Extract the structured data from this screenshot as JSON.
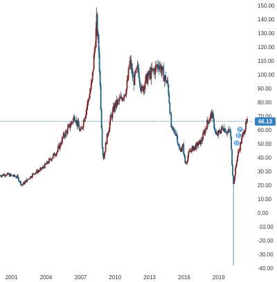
{
  "chart_data": {
    "type": "candlestick",
    "title": "",
    "xlabel": "",
    "ylabel": "",
    "ylim": [
      -42,
      152
    ],
    "xlim": [
      2000.0,
      2021.9
    ],
    "grid": false,
    "x_ticks": [
      {
        "value": 2001,
        "label": "2001"
      },
      {
        "value": 2004,
        "label": "2004"
      },
      {
        "value": 2007,
        "label": "2007"
      },
      {
        "value": 2010,
        "label": "2010"
      },
      {
        "value": 2013,
        "label": "2013"
      },
      {
        "value": 2016,
        "label": "2016"
      },
      {
        "value": 2019,
        "label": "2019"
      }
    ],
    "y_ticks": [
      {
        "value": 150,
        "label": "150.00"
      },
      {
        "value": 140,
        "label": "140.00"
      },
      {
        "value": 130,
        "label": "130.00"
      },
      {
        "value": 120,
        "label": "120.00"
      },
      {
        "value": 110,
        "label": "110.00"
      },
      {
        "value": 100,
        "label": "100.00"
      },
      {
        "value": 90,
        "label": "90.00"
      },
      {
        "value": 80,
        "label": "80.00"
      },
      {
        "value": 70,
        "label": "70.00"
      },
      {
        "value": 60,
        "label": "60.00"
      },
      {
        "value": 50,
        "label": "50.00"
      },
      {
        "value": 40,
        "label": "40.00"
      },
      {
        "value": 30,
        "label": "30.00"
      },
      {
        "value": 20,
        "label": "20.00"
      },
      {
        "value": 10,
        "label": "10.00"
      },
      {
        "value": 0,
        "label": "0.00"
      },
      {
        "value": -10,
        "label": "-10.00"
      },
      {
        "value": -20,
        "label": "-20.00"
      },
      {
        "value": -30,
        "label": "-30.00"
      },
      {
        "value": -40,
        "label": "-40.00"
      }
    ],
    "last_price": {
      "value": 66.13,
      "label": "66.13"
    },
    "markers": [
      {
        "x": 2020.85,
        "y": 60.5,
        "label": "P"
      },
      {
        "x": 2020.72,
        "y": 56.0,
        "label": "E"
      },
      {
        "x": 2020.55,
        "y": 50.5,
        "label": "D"
      }
    ],
    "colors": {
      "up": "#7a1f1f",
      "down": "#1f5f7f",
      "last_price_line": "#1f5f7f",
      "last_price_tag": "#2f80c0",
      "marker": "#3a8fd6",
      "axis_text": "#333333"
    },
    "x": [
      2000.0,
      2000.5,
      2001.0,
      2001.5,
      2001.9,
      2002.5,
      2003.0,
      2003.5,
      2004.0,
      2004.5,
      2005.0,
      2005.5,
      2006.0,
      2006.5,
      2007.0,
      2007.5,
      2008.0,
      2008.4,
      2008.6,
      2008.9,
      2009.0,
      2009.3,
      2009.6,
      2010.0,
      2010.5,
      2011.0,
      2011.3,
      2011.6,
      2012.0,
      2012.3,
      2012.6,
      2013.0,
      2013.4,
      2013.8,
      2014.2,
      2014.6,
      2014.9,
      2015.3,
      2015.6,
      2015.9,
      2016.1,
      2016.5,
      2017.0,
      2017.5,
      2018.0,
      2018.4,
      2018.8,
      2019.0,
      2019.4,
      2019.8,
      2020.0,
      2020.2,
      2020.3,
      2020.4,
      2020.6,
      2020.9,
      2021.2,
      2021.5
    ],
    "values": [
      27,
      28,
      27,
      26,
      20,
      25,
      29,
      31,
      35,
      40,
      45,
      55,
      62,
      70,
      58,
      75,
      95,
      138,
      115,
      45,
      40,
      55,
      68,
      78,
      82,
      90,
      110,
      95,
      105,
      88,
      95,
      100,
      103,
      108,
      100,
      92,
      60,
      58,
      45,
      48,
      35,
      45,
      48,
      52,
      65,
      72,
      55,
      58,
      62,
      58,
      60,
      30,
      20,
      28,
      40,
      50,
      60,
      66
    ],
    "low_spike": {
      "x": 2020.3,
      "low": -38
    }
  }
}
